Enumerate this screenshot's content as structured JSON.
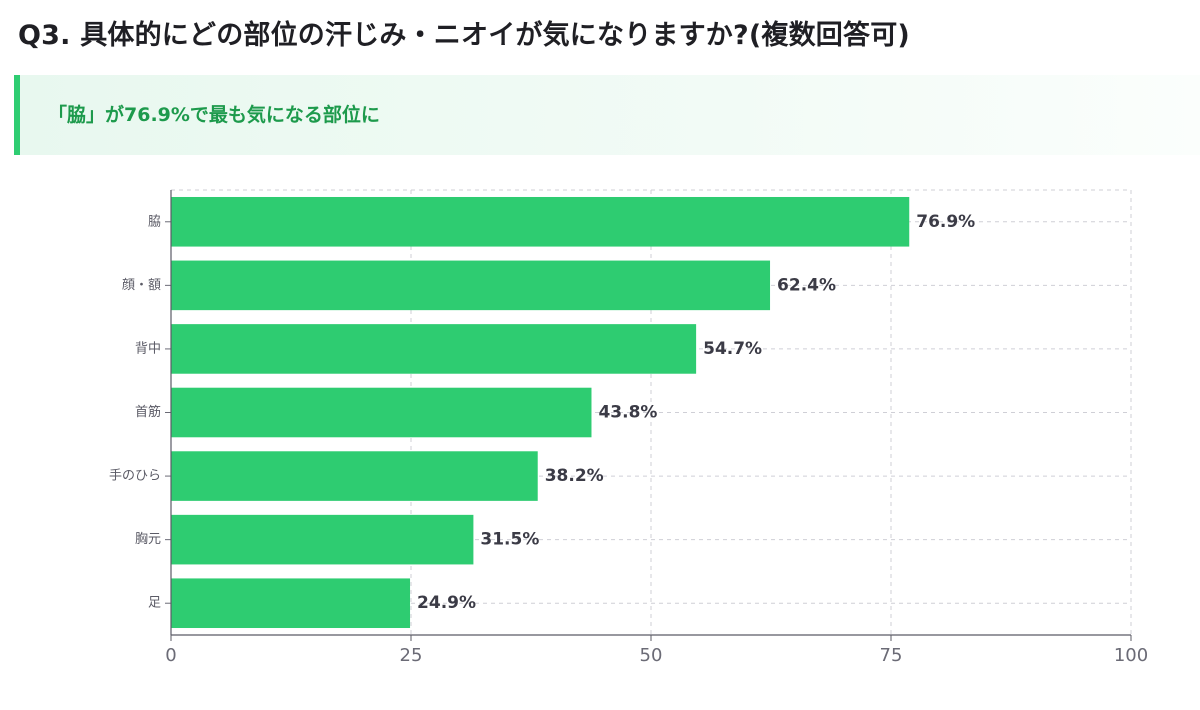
{
  "header": {
    "question_title": "Q3. 具体的にどの部位の汗じみ・ニオイが気になりますか?(複数回答可)"
  },
  "highlight": {
    "text": "「脇」が76.9%で最も気になる部位に"
  },
  "colors": {
    "bar": "#2ecc71",
    "accent": "#2fcd72",
    "highlight_text": "#1d9a4c"
  },
  "chart_data": {
    "type": "bar",
    "orientation": "horizontal",
    "categories": [
      "脇",
      "顔・額",
      "背中",
      "首筋",
      "手のひら",
      "胸元",
      "足"
    ],
    "values": [
      76.9,
      62.4,
      54.7,
      43.8,
      38.2,
      31.5,
      24.9
    ],
    "value_labels": [
      "76.9%",
      "62.4%",
      "54.7%",
      "43.8%",
      "38.2%",
      "31.5%",
      "24.9%"
    ],
    "xlim": [
      0,
      100
    ],
    "xticks": [
      0,
      25,
      50,
      75,
      100
    ],
    "xtick_labels": [
      "0",
      "25",
      "50",
      "75",
      "100"
    ],
    "grid": true
  }
}
